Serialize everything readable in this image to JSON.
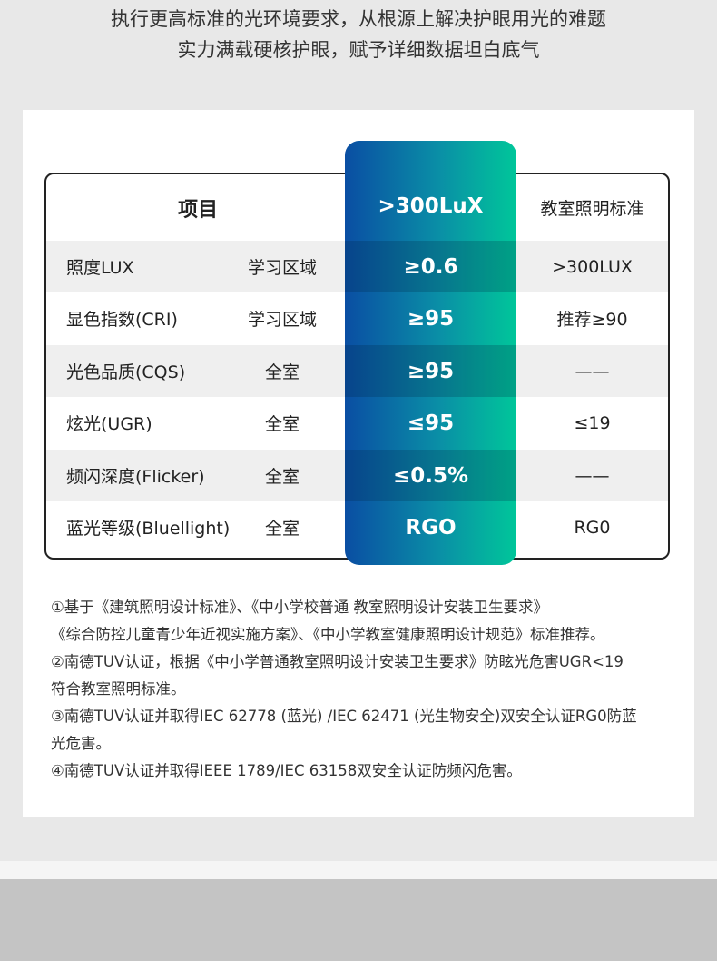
{
  "heading": [
    "执行更高标准的光环境要求，从根源上解决护眼用光的难题",
    "实力满载硬核护眼，赋予详细数据坦白底气"
  ],
  "table": {
    "header": {
      "item": "项目",
      "value": ">300LuX",
      "standard": "教室照明标准"
    },
    "rows": [
      {
        "item": "照度LUX",
        "area": "学习区域",
        "value": "≥0.6",
        "standard": ">300LUX"
      },
      {
        "item": "显色指数(CRI)",
        "area": "学习区域",
        "value": "≥95",
        "standard": "推荐≥90"
      },
      {
        "item": "光色品质(CQS)",
        "area": "全室",
        "value": "≥95",
        "standard": "——"
      },
      {
        "item": "炫光(UGR)",
        "area": "全室",
        "value": "≤95",
        "standard": "≤19"
      },
      {
        "item": "频闪深度(Flicker)",
        "area": "全室",
        "value": "≤0.5%",
        "standard": "——"
      },
      {
        "item": "蓝光等级(Bluellight)",
        "area": "全室",
        "value": "RGO",
        "standard": "RG0"
      }
    ]
  },
  "notes": [
    "①基于《建筑照明设计标准》、《中小学校普通 教室照明设计安装卫生要求》",
    "《综合防控儿童青少年近视实施方案》、《中小学教室健康照明设计规范》标准推荐。",
    "②南德TUV认证，根据《中小学普通教室照明设计安装卫生要求》防眩光危害UGR<19",
    "符合教室照明标准。",
    "③南德TUV认证并取得IEC 62778 (蓝光) /IEC 62471 (光生物安全)双安全认证RG0防蓝",
    "光危害。",
    "④南德TUV认证并取得IEEE 1789/IEC 63158双安全认证防频闪危害。"
  ],
  "colors": {
    "gradient_start": "#0a4ea3",
    "gradient_end": "#00c69a"
  }
}
